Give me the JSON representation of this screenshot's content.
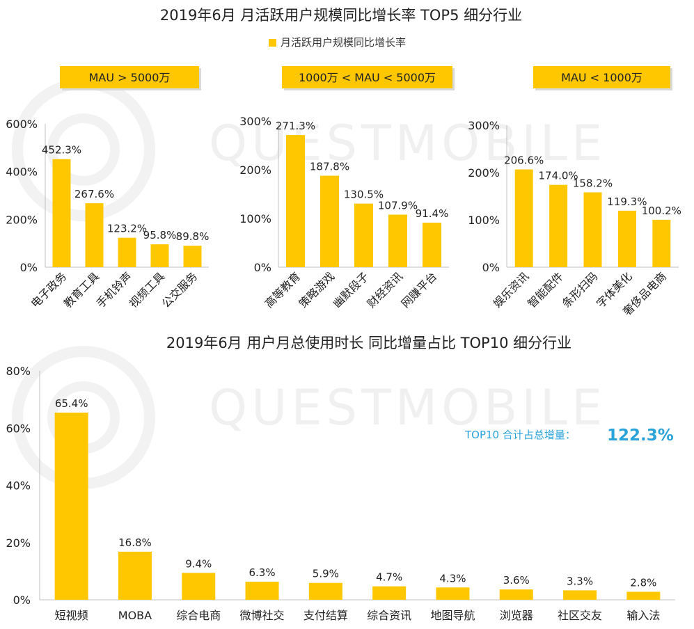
{
  "colors": {
    "bar": "#FFC700",
    "badge": "#FFC700",
    "axis": "#bfbfbf",
    "text": "#222222",
    "accent": "#29A3D9",
    "watermark": "#eeeeee"
  },
  "watermark": "QUESTMOBILE",
  "top_title": "2019年6月 月活跃用户规模同比增长率 TOP5 细分行业",
  "legend_label": "月活跃用户规模同比增长率",
  "bottom_title": "2019年6月 用户月总使用时长 同比增量占比 TOP10 细分行业",
  "summary": {
    "label": "TOP10 合计占总增量：",
    "value": "122.3%"
  },
  "chart_data": [
    {
      "type": "bar",
      "badge": "MAU > 5000万",
      "categories": [
        "电子政务",
        "教育工具",
        "手机铃声",
        "视频工具",
        "公交服务"
      ],
      "values": [
        452.3,
        267.6,
        123.2,
        95.8,
        89.8
      ],
      "value_labels": [
        "452.3%",
        "267.6%",
        "123.2%",
        "95.8%",
        "89.8%"
      ],
      "series_name": "月活跃用户规模同比增长率",
      "ylim": [
        0,
        600
      ],
      "yticks": [
        "0%",
        "200%",
        "400%",
        "600%"
      ],
      "ytick_values": [
        0,
        200,
        400,
        600
      ]
    },
    {
      "type": "bar",
      "badge": "1000万 < MAU < 5000万",
      "categories": [
        "高等教育",
        "策略游戏",
        "幽默段子",
        "财经资讯",
        "网赚平台"
      ],
      "values": [
        271.3,
        187.8,
        130.5,
        107.9,
        91.4
      ],
      "value_labels": [
        "271.3%",
        "187.8%",
        "130.5%",
        "107.9%",
        "91.4%"
      ],
      "series_name": "月活跃用户规模同比增长率",
      "ylim": [
        0,
        300
      ],
      "yticks": [
        "0%",
        "100%",
        "200%",
        "300%"
      ],
      "ytick_values": [
        0,
        100,
        200,
        300
      ]
    },
    {
      "type": "bar",
      "badge": "MAU < 1000万",
      "categories": [
        "娱乐资讯",
        "智能配件",
        "条形扫码",
        "字体美化",
        "奢侈品电商"
      ],
      "values": [
        206.6,
        174.0,
        158.2,
        119.3,
        100.2
      ],
      "value_labels": [
        "206.6%",
        "174.0%",
        "158.2%",
        "119.3%",
        "100.2%"
      ],
      "series_name": "月活跃用户规模同比增长率",
      "ylim": [
        0,
        300
      ],
      "yticks": [
        "0%",
        "100%",
        "200%",
        "300%"
      ],
      "ytick_values": [
        0,
        100,
        200,
        300
      ]
    },
    {
      "type": "bar",
      "categories": [
        "短视频",
        "MOBA",
        "综合电商",
        "微博社交",
        "支付结算",
        "综合资讯",
        "地图导航",
        "浏览器",
        "社区交友",
        "输入法"
      ],
      "values": [
        65.4,
        16.8,
        9.4,
        6.3,
        5.9,
        4.7,
        4.3,
        3.6,
        3.3,
        2.8
      ],
      "value_labels": [
        "65.4%",
        "16.8%",
        "9.4%",
        "6.3%",
        "5.9%",
        "4.7%",
        "4.3%",
        "3.6%",
        "3.3%",
        "2.8%"
      ],
      "ylim": [
        0,
        80
      ],
      "yticks": [
        "0%",
        "20%",
        "40%",
        "60%",
        "80%"
      ],
      "ytick_values": [
        0,
        20,
        40,
        60,
        80
      ]
    }
  ]
}
